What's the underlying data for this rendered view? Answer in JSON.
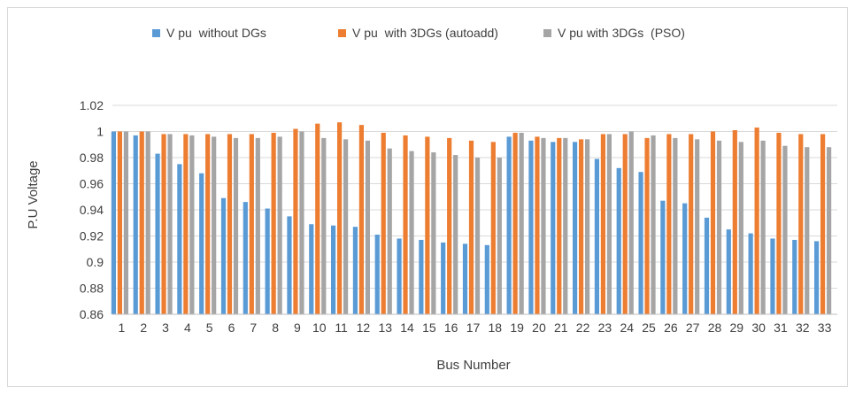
{
  "chart_data": {
    "type": "bar",
    "title": "",
    "xlabel": "Bus Number",
    "ylabel": "P.U Voltage",
    "ylim": [
      0.86,
      1.02
    ],
    "yticks": [
      "0.86",
      "0.88",
      "0.9",
      "0.92",
      "0.94",
      "0.96",
      "0.98",
      "1",
      "1.02"
    ],
    "grid": true,
    "legend_position": "top",
    "categories": [
      "1",
      "2",
      "3",
      "4",
      "5",
      "6",
      "7",
      "8",
      "9",
      "10",
      "11",
      "12",
      "13",
      "14",
      "15",
      "16",
      "17",
      "18",
      "19",
      "20",
      "21",
      "22",
      "23",
      "24",
      "25",
      "26",
      "27",
      "28",
      "29",
      "30",
      "31",
      "32",
      "33"
    ],
    "series": [
      {
        "name": "V pu  without DGs",
        "color": "#5b9bd5",
        "values": [
          1.0,
          0.997,
          0.983,
          0.975,
          0.968,
          0.949,
          0.946,
          0.941,
          0.935,
          0.929,
          0.928,
          0.927,
          0.921,
          0.918,
          0.917,
          0.915,
          0.914,
          0.913,
          0.996,
          0.993,
          0.992,
          0.992,
          0.979,
          0.972,
          0.969,
          0.947,
          0.945,
          0.934,
          0.925,
          0.922,
          0.918,
          0.917,
          0.916
        ]
      },
      {
        "name": "V pu  with 3DGs (autoadd)",
        "color": "#ed7d31",
        "values": [
          1.0,
          1.0,
          0.998,
          0.998,
          0.998,
          0.998,
          0.998,
          0.999,
          1.002,
          1.006,
          1.007,
          1.005,
          0.999,
          0.997,
          0.996,
          0.995,
          0.993,
          0.992,
          0.999,
          0.996,
          0.995,
          0.994,
          0.998,
          0.998,
          0.995,
          0.998,
          0.998,
          1.0,
          1.001,
          1.003,
          0.999,
          0.998,
          0.998
        ]
      },
      {
        "name": "V pu with 3DGs  (PSO)",
        "color": "#a5a5a5",
        "values": [
          1.0,
          1.0,
          0.998,
          0.997,
          0.996,
          0.995,
          0.995,
          0.996,
          1.0,
          0.995,
          0.994,
          0.993,
          0.987,
          0.985,
          0.984,
          0.982,
          0.98,
          0.98,
          0.999,
          0.995,
          0.995,
          0.994,
          0.998,
          1.0,
          0.997,
          0.995,
          0.994,
          0.993,
          0.992,
          0.993,
          0.989,
          0.988,
          0.988
        ]
      }
    ]
  }
}
